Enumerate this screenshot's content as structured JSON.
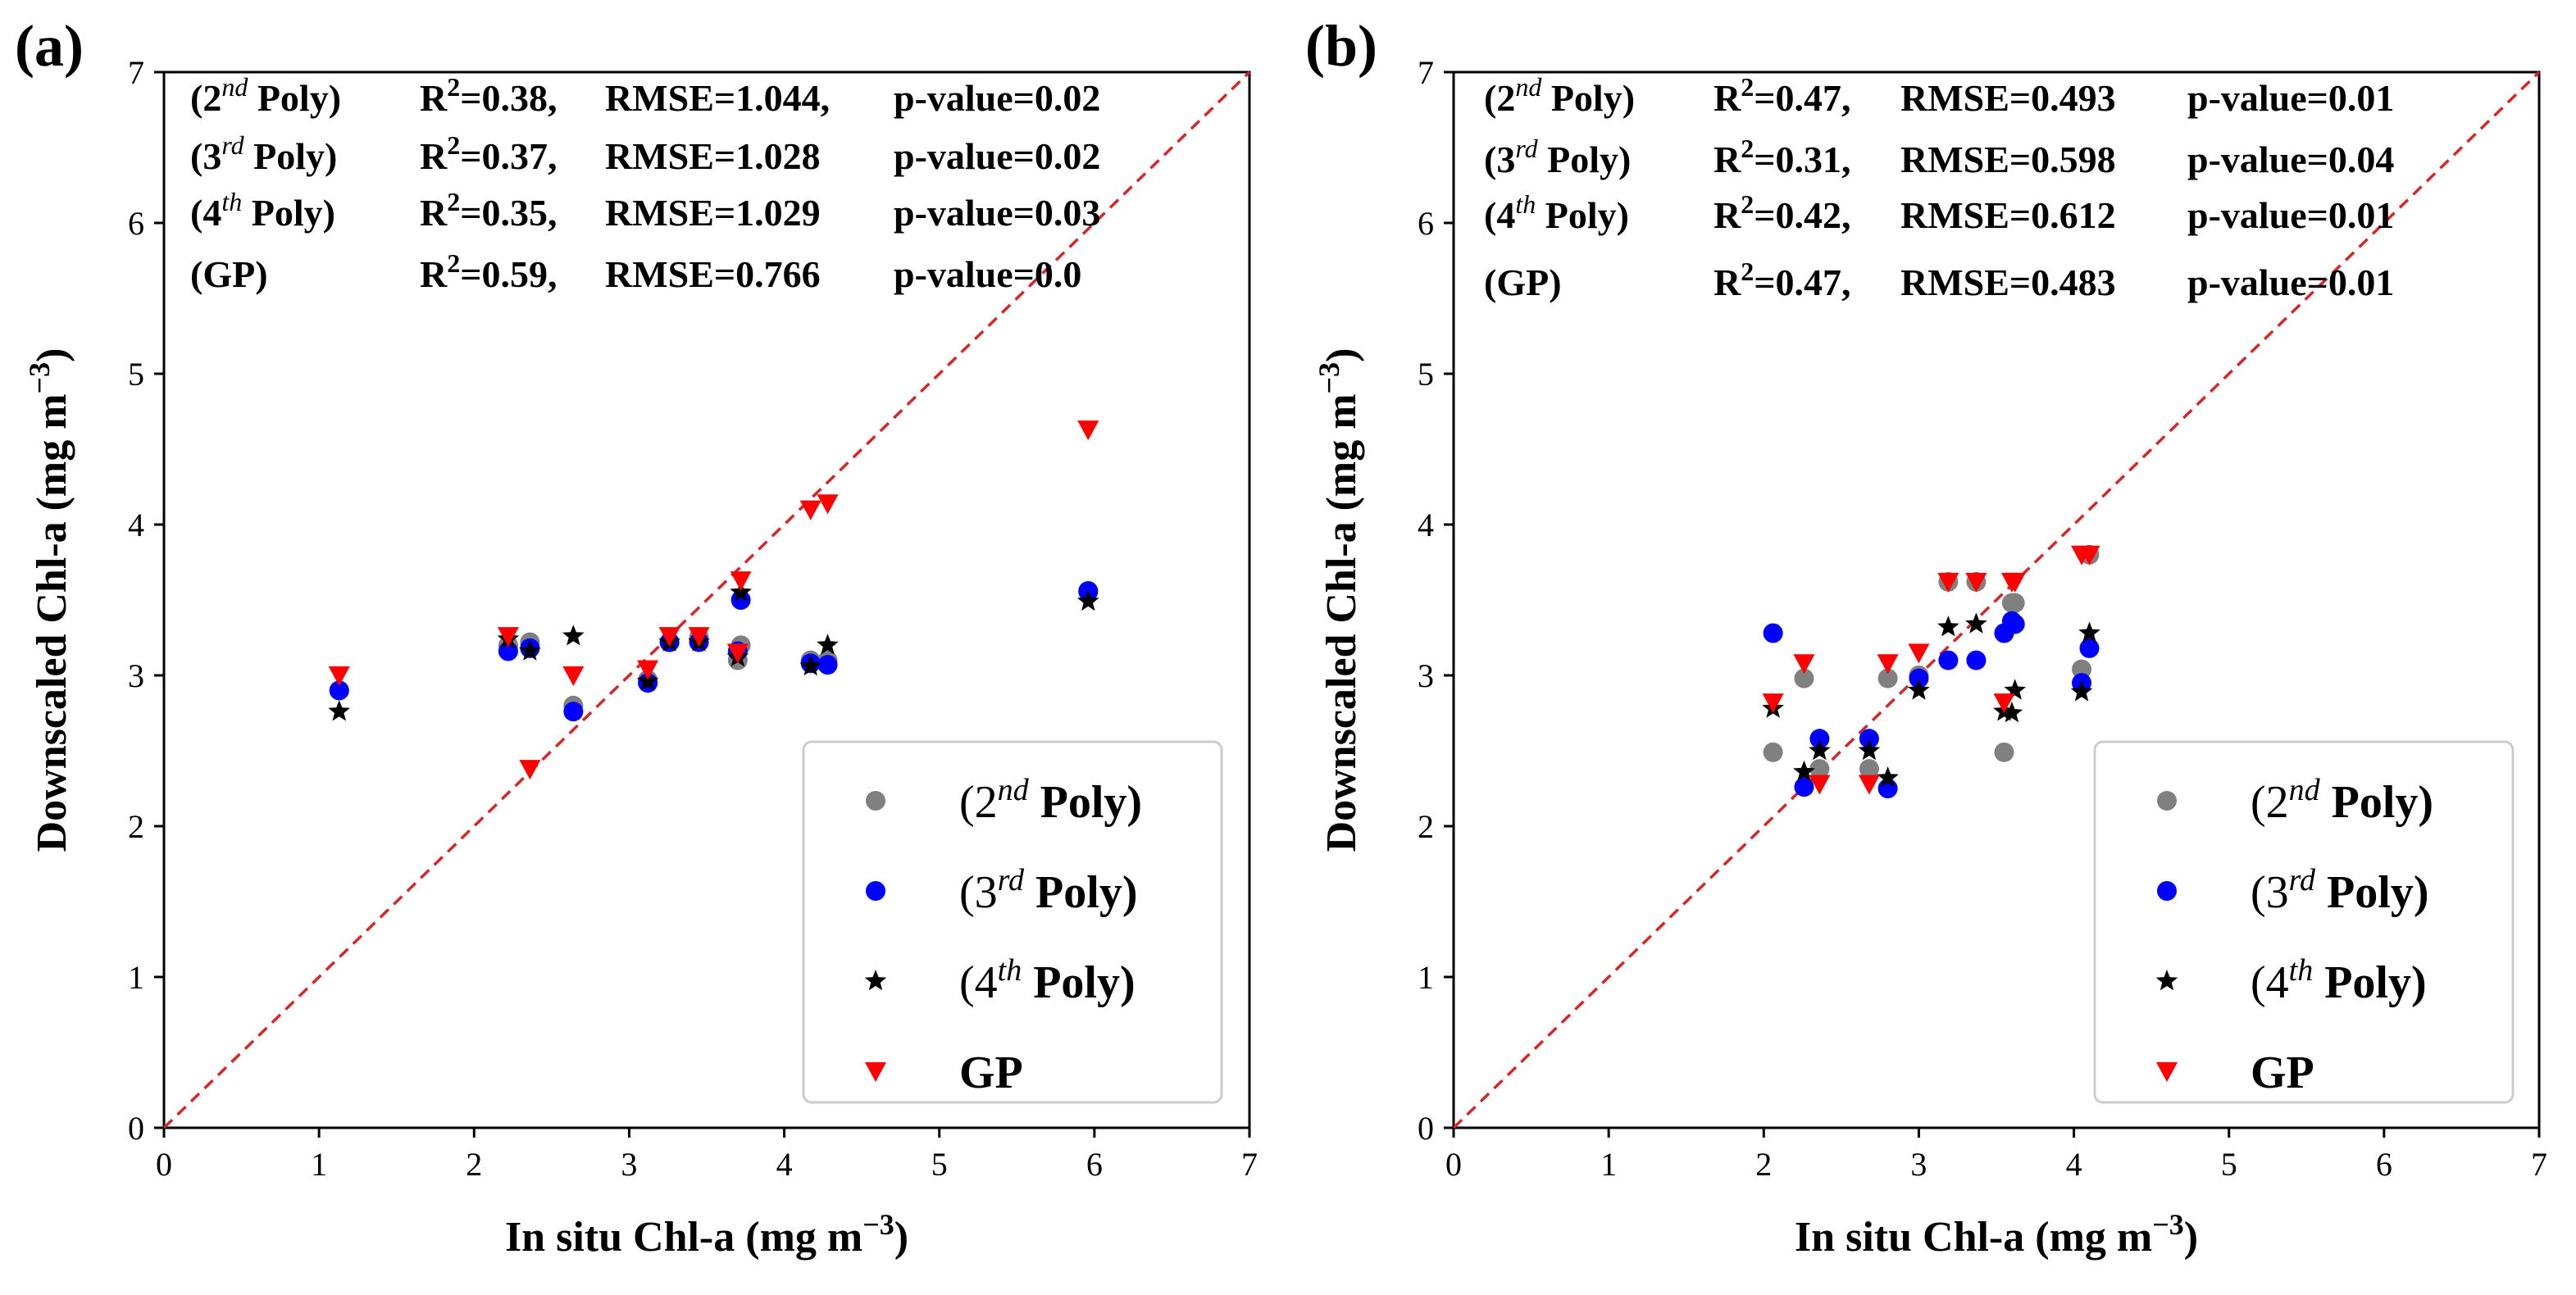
{
  "chart_data": [
    {
      "type": "scatter",
      "panel_label": "(a)",
      "xlabel": "In situ Chl-a (mg m",
      "ylabel": "Downscaled Chl-a (mg m",
      "unit_exponent": "−3",
      "xlim": [
        0,
        7
      ],
      "ylim": [
        0,
        7
      ],
      "xticks": [
        "0",
        "1",
        "2",
        "3",
        "4",
        "5",
        "6",
        "7"
      ],
      "yticks": [
        "0",
        "1",
        "2",
        "3",
        "4",
        "5",
        "6",
        "7"
      ],
      "grid": false,
      "reference_line": {
        "label": "1:1 line",
        "color": "#d62728",
        "style": "dashed"
      },
      "legend_position": "lower-right",
      "stats": [
        {
          "model": "(2",
          "sup": "nd",
          "suffix": " Poly)",
          "r2": "R",
          "r2_value": "=0.38,",
          "rmse": "RMSE=1.044,",
          "p": "p-value=0.02"
        },
        {
          "model": "(3",
          "sup": "rd",
          "suffix": " Poly)",
          "r2": "R",
          "r2_value": "=0.37,",
          "rmse": "RMSE=1.028",
          "p": "p-value=0.02"
        },
        {
          "model": "(4",
          "sup": "th",
          "suffix": " Poly)",
          "r2": "R",
          "r2_value": "=0.35,",
          "rmse": "RMSE=1.029",
          "p": "p-value=0.03"
        },
        {
          "model": "(GP)",
          "sup": "",
          "suffix": "",
          "r2": "R",
          "r2_value": "=0.59,",
          "rmse": "RMSE=0.766",
          "p": "p-value=0.0"
        }
      ],
      "x": [
        1.13,
        2.22,
        2.36,
        2.64,
        3.12,
        3.26,
        3.45,
        3.7,
        3.72,
        4.17,
        4.28,
        5.96
      ],
      "series": [
        {
          "name": "2nd Poly",
          "legend": "(2",
          "sup": "nd",
          "suffix": " Poly)",
          "marker": "circle",
          "color": "#808080",
          "values": [
            2.9,
            3.2,
            3.22,
            2.8,
            2.97,
            3.22,
            3.25,
            3.1,
            3.2,
            3.1,
            3.1,
            3.55
          ]
        },
        {
          "name": "3rd Poly",
          "legend": "(3",
          "sup": "rd",
          "suffix": " Poly)",
          "marker": "circle",
          "color": "#0000ff",
          "values": [
            2.9,
            3.16,
            3.18,
            2.76,
            2.95,
            3.22,
            3.22,
            3.16,
            3.5,
            3.08,
            3.07,
            3.56
          ]
        },
        {
          "name": "4th Poly",
          "legend": "(4",
          "sup": "th",
          "suffix": " Poly)",
          "marker": "star",
          "color": "#000000",
          "values": [
            2.76,
            3.24,
            3.16,
            3.26,
            2.96,
            3.22,
            3.22,
            3.12,
            3.55,
            3.06,
            3.2,
            3.49
          ]
        },
        {
          "name": "GP",
          "legend": "GP",
          "sup": "",
          "suffix": "",
          "marker": "triangle-down",
          "color": "#ff0000",
          "values": [
            3.0,
            3.26,
            2.38,
            3.0,
            3.04,
            3.26,
            3.26,
            3.15,
            3.63,
            4.1,
            4.14,
            4.63
          ]
        }
      ]
    },
    {
      "type": "scatter",
      "panel_label": "(b)",
      "xlabel": "In situ Chl-a (mg m",
      "ylabel": "Downscaled Chl-a (mg m",
      "unit_exponent": "−3",
      "xlim": [
        0,
        7
      ],
      "ylim": [
        0,
        7
      ],
      "xticks": [
        "0",
        "1",
        "2",
        "3",
        "4",
        "5",
        "6",
        "7"
      ],
      "yticks": [
        "0",
        "1",
        "2",
        "3",
        "4",
        "5",
        "6",
        "7"
      ],
      "grid": false,
      "reference_line": {
        "label": "1:1 line",
        "color": "#d62728",
        "style": "dashed"
      },
      "legend_position": "lower-right",
      "stats": [
        {
          "model": "(2",
          "sup": "nd",
          "suffix": " Poly)",
          "r2": "R",
          "r2_value": "=0.47,",
          "rmse": "RMSE=0.493",
          "p": "p-value=0.01"
        },
        {
          "model": "(3",
          "sup": "rd",
          "suffix": " Poly)",
          "r2": "R",
          "r2_value": "=0.31,",
          "rmse": "RMSE=0.598",
          "p": "p-value=0.04"
        },
        {
          "model": "(4",
          "sup": "th",
          "suffix": " Poly)",
          "r2": "R",
          "r2_value": "=0.42,",
          "rmse": "RMSE=0.612",
          "p": "p-value=0.01"
        },
        {
          "model": "(GP)",
          "sup": "",
          "suffix": "",
          "r2": "R",
          "r2_value": "=0.47,",
          "rmse": "RMSE=0.483",
          "p": "p-value=0.01"
        }
      ],
      "x": [
        2.06,
        2.26,
        2.36,
        2.68,
        2.8,
        3.0,
        3.19,
        3.37,
        3.55,
        3.6,
        3.62,
        4.05,
        4.1
      ],
      "series": [
        {
          "name": "2nd Poly",
          "legend": "(2",
          "sup": "nd",
          "suffix": " Poly)",
          "marker": "circle",
          "color": "#808080",
          "values": [
            2.49,
            2.98,
            2.38,
            2.38,
            2.98,
            3.0,
            3.62,
            3.62,
            2.49,
            3.48,
            3.48,
            3.04,
            3.8
          ]
        },
        {
          "name": "3rd Poly",
          "legend": "(3",
          "sup": "rd",
          "suffix": " Poly)",
          "marker": "circle",
          "color": "#0000ff",
          "values": [
            3.28,
            2.26,
            2.58,
            2.58,
            2.25,
            2.98,
            3.1,
            3.1,
            3.28,
            3.36,
            3.34,
            2.95,
            3.18
          ]
        },
        {
          "name": "4th Poly",
          "legend": "(4",
          "sup": "th",
          "suffix": " Poly)",
          "marker": "star",
          "color": "#000000",
          "values": [
            2.78,
            2.36,
            2.5,
            2.5,
            2.32,
            2.9,
            3.32,
            3.34,
            2.76,
            2.75,
            2.9,
            2.89,
            3.28
          ]
        },
        {
          "name": "GP",
          "legend": "GP",
          "sup": "",
          "suffix": "",
          "marker": "triangle-down",
          "color": "#ff0000",
          "values": [
            2.82,
            3.08,
            2.28,
            2.28,
            3.08,
            3.15,
            3.62,
            3.62,
            2.82,
            3.62,
            3.62,
            3.8,
            3.8
          ]
        }
      ]
    }
  ]
}
